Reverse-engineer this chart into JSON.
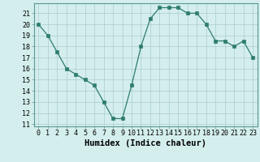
{
  "x": [
    0,
    1,
    2,
    3,
    4,
    5,
    6,
    7,
    8,
    9,
    10,
    11,
    12,
    13,
    14,
    15,
    16,
    17,
    18,
    19,
    20,
    21,
    22,
    23
  ],
  "y": [
    20.0,
    19.0,
    17.5,
    16.0,
    15.5,
    15.0,
    14.5,
    13.0,
    11.5,
    11.5,
    14.5,
    18.0,
    20.5,
    21.5,
    21.5,
    21.5,
    21.0,
    21.0,
    20.0,
    18.5,
    18.5,
    18.0,
    18.5,
    17.0
  ],
  "line_color": "#2e7d6e",
  "marker": "s",
  "marker_size": 2.5,
  "bg_color": "#d4eeee",
  "grid_color": "#aacccc",
  "xlabel": "Humidex (Indice chaleur)",
  "yticks": [
    11,
    12,
    13,
    14,
    15,
    16,
    17,
    18,
    19,
    20,
    21
  ],
  "xlim": [
    -0.5,
    23.5
  ],
  "ylim": [
    10.8,
    21.9
  ],
  "tick_fontsize": 6,
  "xlabel_fontsize": 7.5,
  "xticks": [
    0,
    1,
    2,
    3,
    4,
    5,
    6,
    7,
    8,
    9,
    10,
    11,
    12,
    13,
    14,
    15,
    16,
    17,
    18,
    19,
    20,
    21,
    22,
    23
  ]
}
